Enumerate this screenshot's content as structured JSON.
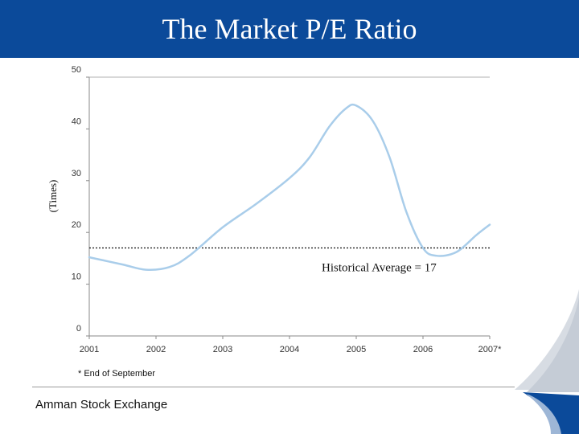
{
  "header": {
    "title": "The Market P/E Ratio",
    "color": "#0b4a9a"
  },
  "footnote": "* End of September",
  "source": "Amman Stock Exchange",
  "chart_data": {
    "type": "line",
    "title": "The Market P/E Ratio",
    "ylabel": "(Times)",
    "xlabel": "",
    "categories": [
      "2001",
      "2002",
      "2003",
      "2004",
      "2005",
      "2006",
      "2007*"
    ],
    "yticks": [
      "0",
      "10",
      "20",
      "30",
      "40",
      "50"
    ],
    "ylim": [
      0,
      50
    ],
    "xlim": [
      0,
      6
    ],
    "grid": false,
    "series": [
      {
        "name": "P/E Ratio",
        "color": "#a9cdea",
        "x": [
          0,
          0.5,
          0.85,
          1.2,
          1.5,
          2.0,
          2.5,
          3.0,
          3.3,
          3.6,
          3.85,
          4.0,
          4.25,
          4.5,
          4.75,
          5.0,
          5.2,
          5.5,
          5.8,
          6.0
        ],
        "y": [
          15.2,
          13.8,
          12.8,
          13.3,
          15.5,
          21.0,
          25.5,
          30.5,
          34.5,
          40.5,
          44.0,
          44.5,
          41.5,
          34.5,
          24.0,
          17.0,
          15.5,
          16.2,
          19.5,
          21.5
        ]
      }
    ],
    "reference_line": {
      "value": 17,
      "label": "Historical Average = 17"
    }
  }
}
